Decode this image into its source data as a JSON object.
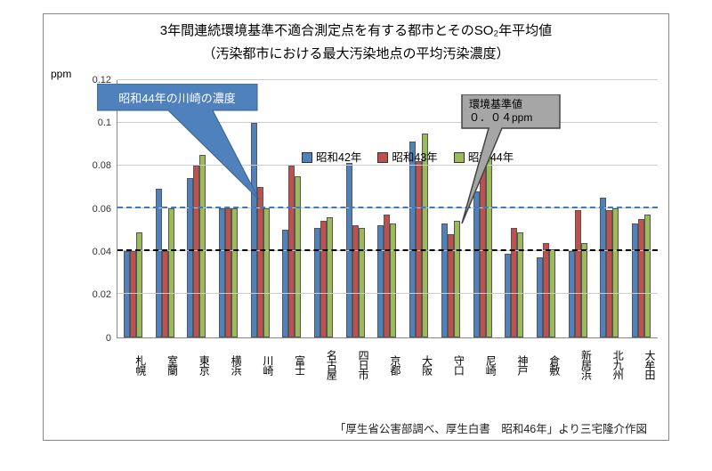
{
  "title_line1": "3年間連続環境基準不適合測定点を有する都市とそのSO₂年平均値",
  "title_line2": "（汚染都市における最大汚染地点の平均汚染濃度）",
  "ylabel": "ppm",
  "ylim": [
    0,
    0.12
  ],
  "yticks": [
    0,
    0.02,
    0.04,
    0.06,
    0.08,
    0.1,
    0.12
  ],
  "series": [
    {
      "label": "昭和42年",
      "color": "#4f81bd"
    },
    {
      "label": "昭和43年",
      "color": "#c0504d"
    },
    {
      "label": "昭和44年",
      "color": "#9bbb59"
    }
  ],
  "categories": [
    "札幌",
    "室蘭",
    "東京",
    "横浜",
    "川崎",
    "富士",
    "名古屋",
    "四日市",
    "京都",
    "大阪",
    "守口",
    "尼崎",
    "神戸",
    "倉敷",
    "新居浜",
    "北九州",
    "大牟田"
  ],
  "data": {
    "札幌": [
      0.04,
      0.04,
      0.049
    ],
    "室蘭": [
      0.069,
      0.04,
      0.06
    ],
    "東京": [
      0.074,
      0.08,
      0.085
    ],
    "横浜": [
      0.06,
      0.06,
      0.06
    ],
    "川崎": [
      0.1,
      0.07,
      0.06
    ],
    "富士": [
      0.05,
      0.08,
      0.075
    ],
    "名古屋": [
      0.051,
      0.054,
      0.056
    ],
    "四日市": [
      0.081,
      0.052,
      0.051
    ],
    "京都": [
      0.052,
      0.057,
      0.053
    ],
    "大阪": [
      0.091,
      0.082,
      0.095
    ],
    "守口": [
      0.053,
      0.048,
      0.054
    ],
    "尼崎": [
      0.068,
      0.083,
      0.084
    ],
    "神戸": [
      0.039,
      0.051,
      0.049
    ],
    "倉敷": [
      0.037,
      0.044,
      0.041
    ],
    "新居浜": [
      0.04,
      0.059,
      0.044
    ],
    "北九州": [
      0.065,
      0.059,
      0.06
    ],
    "大牟田": [
      0.053,
      0.055,
      0.057
    ]
  },
  "reflines": [
    {
      "value": 0.06,
      "style": "dash-blue"
    },
    {
      "value": 0.04,
      "style": "dash-black"
    }
  ],
  "callout_blue": {
    "text": "昭和44年の川崎の濃度",
    "bg": "#4f81bd"
  },
  "callout_grey": {
    "line1": "環境基準値",
    "line2": "０．０４ppm"
  },
  "footer": "「厚生省公害部調べ、厚生白書　昭和46年」より三宅隆介作図",
  "grid_color": "#cccccc",
  "background_color": "#ffffff"
}
